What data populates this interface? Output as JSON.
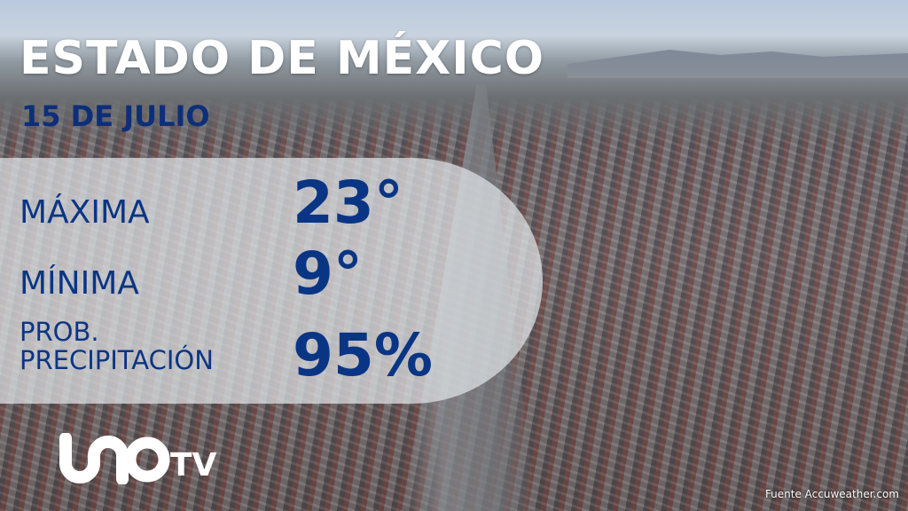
{
  "header": {
    "title": "ESTADO DE MÉXICO",
    "date": "15 DE JULIO"
  },
  "forecast": [
    {
      "label": "MÁXIMA",
      "value": "23°"
    },
    {
      "label": "MÍNIMA",
      "value": "9°"
    },
    {
      "label_line1": "PROB.",
      "label_line2": "PRECIPITACIÓN",
      "value": "95%"
    }
  ],
  "brand": {
    "logo_text": "UNOTV",
    "accent_color": "#0a3585"
  },
  "footer": {
    "source": "Fuente Accuweather.com"
  }
}
